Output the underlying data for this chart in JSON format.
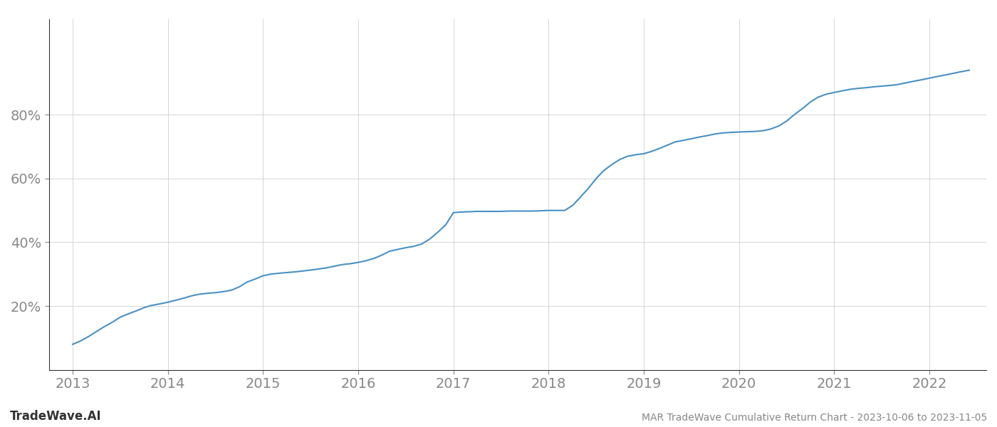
{
  "title": "MAR TradeWave Cumulative Return Chart - 2023-10-06 to 2023-11-05",
  "watermark": "TradeWave.AI",
  "line_color": "#4a90c4",
  "background_color": "#ffffff",
  "grid_color": "#d0d0d0",
  "x_values": [
    2013.0,
    2013.08,
    2013.17,
    2013.25,
    2013.33,
    2013.42,
    2013.5,
    2013.58,
    2013.67,
    2013.75,
    2013.83,
    2013.92,
    2014.0,
    2014.08,
    2014.17,
    2014.25,
    2014.33,
    2014.42,
    2014.5,
    2014.58,
    2014.67,
    2014.75,
    2014.83,
    2014.92,
    2015.0,
    2015.08,
    2015.17,
    2015.25,
    2015.33,
    2015.42,
    2015.5,
    2015.58,
    2015.67,
    2015.75,
    2015.83,
    2015.92,
    2016.0,
    2016.08,
    2016.17,
    2016.25,
    2016.33,
    2016.42,
    2016.5,
    2016.58,
    2016.67,
    2016.75,
    2016.83,
    2016.92,
    2017.0,
    2017.08,
    2017.17,
    2017.25,
    2017.33,
    2017.42,
    2017.5,
    2017.58,
    2017.67,
    2017.75,
    2017.83,
    2017.92,
    2018.0,
    2018.08,
    2018.17,
    2018.25,
    2018.33,
    2018.42,
    2018.5,
    2018.58,
    2018.67,
    2018.75,
    2018.83,
    2018.92,
    2019.0,
    2019.08,
    2019.17,
    2019.25,
    2019.33,
    2019.42,
    2019.5,
    2019.58,
    2019.67,
    2019.75,
    2019.83,
    2019.92,
    2020.0,
    2020.08,
    2020.17,
    2020.25,
    2020.33,
    2020.42,
    2020.5,
    2020.58,
    2020.67,
    2020.75,
    2020.83,
    2020.92,
    2021.0,
    2021.08,
    2021.17,
    2021.25,
    2021.33,
    2021.42,
    2021.5,
    2021.58,
    2021.67,
    2021.75,
    2021.83,
    2021.92,
    2022.0,
    2022.08,
    2022.17,
    2022.25,
    2022.33,
    2022.42
  ],
  "y_values": [
    8.0,
    9.0,
    10.5,
    12.0,
    13.5,
    15.0,
    16.5,
    17.5,
    18.5,
    19.5,
    20.2,
    20.7,
    21.2,
    21.8,
    22.5,
    23.2,
    23.7,
    24.0,
    24.2,
    24.5,
    25.0,
    26.0,
    27.5,
    28.5,
    29.5,
    30.0,
    30.3,
    30.5,
    30.7,
    31.0,
    31.3,
    31.6,
    32.0,
    32.5,
    33.0,
    33.3,
    33.7,
    34.2,
    35.0,
    36.0,
    37.2,
    37.8,
    38.3,
    38.7,
    39.5,
    41.0,
    43.0,
    45.5,
    49.3,
    49.5,
    49.6,
    49.7,
    49.7,
    49.7,
    49.7,
    49.8,
    49.8,
    49.8,
    49.8,
    49.9,
    50.0,
    50.0,
    50.0,
    51.5,
    54.0,
    57.0,
    60.0,
    62.5,
    64.5,
    66.0,
    67.0,
    67.5,
    67.8,
    68.5,
    69.5,
    70.5,
    71.5,
    72.0,
    72.5,
    73.0,
    73.5,
    74.0,
    74.3,
    74.5,
    74.6,
    74.7,
    74.8,
    75.0,
    75.5,
    76.5,
    78.0,
    80.0,
    82.0,
    84.0,
    85.5,
    86.5,
    87.0,
    87.5,
    88.0,
    88.3,
    88.5,
    88.8,
    89.0,
    89.2,
    89.5,
    90.0,
    90.5,
    91.0,
    91.5,
    92.0,
    92.5,
    93.0,
    93.5,
    94.0
  ],
  "yticks": [
    20,
    40,
    60,
    80
  ],
  "ytick_labels": [
    "20%",
    "40%",
    "60%",
    "80%"
  ],
  "xticks": [
    2013,
    2014,
    2015,
    2016,
    2017,
    2018,
    2019,
    2020,
    2021,
    2022
  ],
  "xlim": [
    2012.75,
    2022.6
  ],
  "ylim": [
    0,
    110
  ],
  "line_width": 1.5,
  "title_fontsize": 10,
  "tick_fontsize": 14,
  "watermark_fontsize": 12,
  "tick_color": "#888888",
  "spine_color": "#333333",
  "grid_color_light": "#dddddd"
}
